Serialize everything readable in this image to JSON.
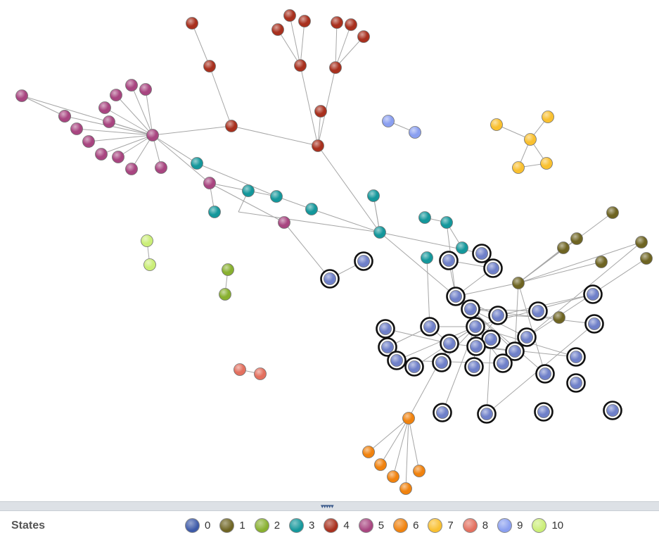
{
  "legend": {
    "title": "States",
    "items": [
      {
        "label": "0",
        "color": "#3d5aa8"
      },
      {
        "label": "1",
        "color": "#6e6422"
      },
      {
        "label": "2",
        "color": "#88b02f"
      },
      {
        "label": "3",
        "color": "#14979b"
      },
      {
        "label": "4",
        "color": "#a8301e"
      },
      {
        "label": "5",
        "color": "#a84580"
      },
      {
        "label": "6",
        "color": "#f0820e"
      },
      {
        "label": "7",
        "color": "#f9c030"
      },
      {
        "label": "8",
        "color": "#e3705f"
      },
      {
        "label": "9",
        "color": "#8a9ff0"
      },
      {
        "label": "10",
        "color": "#cbee78"
      }
    ]
  },
  "splitter": {
    "grip": "▾▾▾▾▾"
  },
  "graph": {
    "nodes": [
      {
        "id": "r1",
        "state": 4
      },
      {
        "id": "r2",
        "state": 4
      },
      {
        "id": "r3",
        "state": 4
      },
      {
        "id": "r4",
        "state": 4
      },
      {
        "id": "r5",
        "state": 4
      },
      {
        "id": "r6",
        "state": 4
      },
      {
        "id": "r7",
        "state": 4
      },
      {
        "id": "r8",
        "state": 4
      },
      {
        "id": "r9",
        "state": 4
      },
      {
        "id": "r10",
        "state": 4
      },
      {
        "id": "r11",
        "state": 4
      },
      {
        "id": "r12",
        "state": 4
      },
      {
        "id": "r13",
        "state": 4
      },
      {
        "id": "m0",
        "state": 5
      },
      {
        "id": "m1",
        "state": 5
      },
      {
        "id": "m2",
        "state": 5
      },
      {
        "id": "m3",
        "state": 5
      },
      {
        "id": "m4",
        "state": 5
      },
      {
        "id": "m5",
        "state": 5
      },
      {
        "id": "m6",
        "state": 5
      },
      {
        "id": "m7",
        "state": 5
      },
      {
        "id": "m8",
        "state": 5
      },
      {
        "id": "m9",
        "state": 5
      },
      {
        "id": "m10",
        "state": 5
      },
      {
        "id": "m11",
        "state": 5
      },
      {
        "id": "m12",
        "state": 5
      },
      {
        "id": "m13",
        "state": 5
      },
      {
        "id": "m14",
        "state": 5
      },
      {
        "id": "m15",
        "state": 5
      },
      {
        "id": "m16",
        "state": 5
      },
      {
        "id": "t1",
        "state": 3
      },
      {
        "id": "t2",
        "state": 3
      },
      {
        "id": "t3",
        "state": 3
      },
      {
        "id": "t4",
        "state": 3
      },
      {
        "id": "t5",
        "state": 3
      },
      {
        "id": "t6",
        "state": 3
      },
      {
        "id": "t7",
        "state": 3
      },
      {
        "id": "t8",
        "state": 3
      },
      {
        "id": "t9",
        "state": 3
      },
      {
        "id": "t10",
        "state": 3
      },
      {
        "id": "t11",
        "state": 3
      },
      {
        "id": "o1",
        "state": 1
      },
      {
        "id": "o2",
        "state": 1
      },
      {
        "id": "o3",
        "state": 1
      },
      {
        "id": "o4",
        "state": 1
      },
      {
        "id": "o5",
        "state": 1
      },
      {
        "id": "o6",
        "state": 1
      },
      {
        "id": "o7",
        "state": 1
      },
      {
        "id": "o8",
        "state": 1
      },
      {
        "id": "y1",
        "state": 7
      },
      {
        "id": "y2",
        "state": 7
      },
      {
        "id": "y3",
        "state": 7
      },
      {
        "id": "y4",
        "state": 7
      },
      {
        "id": "y5",
        "state": 7
      },
      {
        "id": "p1",
        "state": 9
      },
      {
        "id": "p2",
        "state": 9
      },
      {
        "id": "lg1",
        "state": 10
      },
      {
        "id": "lg2",
        "state": 10
      },
      {
        "id": "g1",
        "state": 2
      },
      {
        "id": "g2",
        "state": 2
      },
      {
        "id": "s1",
        "state": 8
      },
      {
        "id": "s2",
        "state": 8
      },
      {
        "id": "or0",
        "state": 6
      },
      {
        "id": "or1",
        "state": 6
      },
      {
        "id": "or2",
        "state": 6
      },
      {
        "id": "or3",
        "state": 6
      },
      {
        "id": "or4",
        "state": 6
      },
      {
        "id": "or5",
        "state": 6
      },
      {
        "id": "b1",
        "state": 0,
        "selected": true
      },
      {
        "id": "b2",
        "state": 0,
        "selected": true
      },
      {
        "id": "b3",
        "state": 0,
        "selected": true
      },
      {
        "id": "b4",
        "state": 0,
        "selected": true
      },
      {
        "id": "b5",
        "state": 0,
        "selected": true
      },
      {
        "id": "b6",
        "state": 0,
        "selected": true
      },
      {
        "id": "b7",
        "state": 0,
        "selected": true
      },
      {
        "id": "b8",
        "state": 0,
        "selected": true
      },
      {
        "id": "b9",
        "state": 0,
        "selected": true
      },
      {
        "id": "b10",
        "state": 0,
        "selected": true
      },
      {
        "id": "b11",
        "state": 0,
        "selected": true
      },
      {
        "id": "b12",
        "state": 0,
        "selected": true
      },
      {
        "id": "b13",
        "state": 0,
        "selected": true
      },
      {
        "id": "b14",
        "state": 0,
        "selected": true
      },
      {
        "id": "b15",
        "state": 0,
        "selected": true
      },
      {
        "id": "b16",
        "state": 0,
        "selected": true
      },
      {
        "id": "b17",
        "state": 0,
        "selected": true
      },
      {
        "id": "b18",
        "state": 0,
        "selected": true
      },
      {
        "id": "b19",
        "state": 0,
        "selected": true
      },
      {
        "id": "b20",
        "state": 0,
        "selected": true
      },
      {
        "id": "b21",
        "state": 0,
        "selected": true
      },
      {
        "id": "b22",
        "state": 0,
        "selected": true
      },
      {
        "id": "b23",
        "state": 0,
        "selected": true
      },
      {
        "id": "b24",
        "state": 0,
        "selected": true
      },
      {
        "id": "b25",
        "state": 0,
        "selected": true
      },
      {
        "id": "b26",
        "state": 0,
        "selected": true
      },
      {
        "id": "b27",
        "state": 0,
        "selected": true
      },
      {
        "id": "b28",
        "state": 0,
        "selected": true
      },
      {
        "id": "b29",
        "state": 0,
        "selected": true
      }
    ],
    "edges": [
      [
        "r1",
        "r2"
      ],
      [
        "r2",
        "r10"
      ],
      [
        "r3",
        "r6"
      ],
      [
        "r4",
        "r6"
      ],
      [
        "r5",
        "r6"
      ],
      [
        "r6",
        "r12"
      ],
      [
        "r7",
        "r9"
      ],
      [
        "r8",
        "r9"
      ],
      [
        "r9",
        "r12"
      ],
      [
        "r13",
        "r9"
      ],
      [
        "r11",
        "r12"
      ],
      [
        "r10",
        "r12"
      ],
      [
        "r10",
        "m0"
      ],
      [
        "m0",
        "m1"
      ],
      [
        "m0",
        "m2"
      ],
      [
        "m0",
        "m3"
      ],
      [
        "m0",
        "m4"
      ],
      [
        "m0",
        "m5"
      ],
      [
        "m0",
        "m6"
      ],
      [
        "m0",
        "m7"
      ],
      [
        "m0",
        "m8"
      ],
      [
        "m0",
        "m9"
      ],
      [
        "m0",
        "m10"
      ],
      [
        "m0",
        "m11"
      ],
      [
        "m0",
        "m12"
      ],
      [
        "m0",
        "m13"
      ],
      [
        "m1",
        "m14"
      ],
      [
        "m0",
        "t1"
      ],
      [
        "m0",
        "m15"
      ],
      [
        "m15",
        "t2"
      ],
      [
        "m15",
        "t3"
      ],
      [
        "m15",
        "m16"
      ],
      [
        "m16",
        "b1"
      ],
      [
        "t2",
        "m17"
      ],
      [
        "t2",
        "t4"
      ],
      [
        "t4",
        "t5"
      ],
      [
        "t5",
        "t7"
      ],
      [
        "m17",
        "t7"
      ],
      [
        "t7",
        "t6"
      ],
      [
        "r12",
        "t7"
      ],
      [
        "t1",
        "t4"
      ],
      [
        "t6",
        "t7"
      ],
      [
        "t7",
        "b6"
      ],
      [
        "t7",
        "b4"
      ],
      [
        "t8",
        "t9"
      ],
      [
        "t9",
        "b6"
      ],
      [
        "t10",
        "t9"
      ],
      [
        "t11",
        "b5"
      ],
      [
        "b1",
        "b2"
      ],
      [
        "b6",
        "b7"
      ],
      [
        "b6",
        "b9"
      ],
      [
        "b6",
        "b10"
      ],
      [
        "b6",
        "o1"
      ],
      [
        "b6",
        "b3"
      ],
      [
        "b7",
        "b8"
      ],
      [
        "b7",
        "b11"
      ],
      [
        "b7",
        "b15"
      ],
      [
        "b7",
        "b16"
      ],
      [
        "b7",
        "b23"
      ],
      [
        "b7",
        "b13"
      ],
      [
        "b5",
        "b8"
      ],
      [
        "b5",
        "b14"
      ],
      [
        "b5",
        "b25"
      ],
      [
        "b3",
        "b9"
      ],
      [
        "b4",
        "b9"
      ],
      [
        "b8",
        "b12"
      ],
      [
        "b8",
        "b17"
      ],
      [
        "b8",
        "b22"
      ],
      [
        "b8",
        "b20"
      ],
      [
        "b8",
        "b26"
      ],
      [
        "b8",
        "b14"
      ],
      [
        "b8",
        "b21"
      ],
      [
        "b8",
        "b24"
      ],
      [
        "b8",
        "b28"
      ],
      [
        "b8",
        "b19"
      ],
      [
        "b8",
        "b27"
      ],
      [
        "b15",
        "o6"
      ],
      [
        "b14",
        "b16"
      ],
      [
        "b14",
        "b19"
      ],
      [
        "b14",
        "b18"
      ],
      [
        "b14",
        "or0"
      ],
      [
        "b17",
        "b29"
      ],
      [
        "b12",
        "b10"
      ],
      [
        "b10",
        "b22"
      ],
      [
        "b10",
        "o8"
      ],
      [
        "b21",
        "b26"
      ],
      [
        "o1",
        "o2"
      ],
      [
        "o1",
        "o3"
      ],
      [
        "o1",
        "o4"
      ],
      [
        "o1",
        "o5"
      ],
      [
        "o1",
        "o6"
      ],
      [
        "o1",
        "b23"
      ],
      [
        "o1",
        "b16"
      ],
      [
        "b15",
        "o7"
      ],
      [
        "b22",
        "b24"
      ],
      [
        "b13",
        "b29"
      ],
      [
        "or0",
        "or1"
      ],
      [
        "or0",
        "or2"
      ],
      [
        "or0",
        "or3"
      ],
      [
        "or0",
        "or4"
      ],
      [
        "or0",
        "or5"
      ],
      [
        "y1",
        "y3"
      ],
      [
        "y2",
        "y3"
      ],
      [
        "y3",
        "y4"
      ],
      [
        "y3",
        "y5"
      ],
      [
        "y4",
        "y5"
      ],
      [
        "p1",
        "p2"
      ],
      [
        "lg1",
        "lg2"
      ],
      [
        "g1",
        "g2"
      ],
      [
        "s1",
        "s2"
      ]
    ]
  }
}
